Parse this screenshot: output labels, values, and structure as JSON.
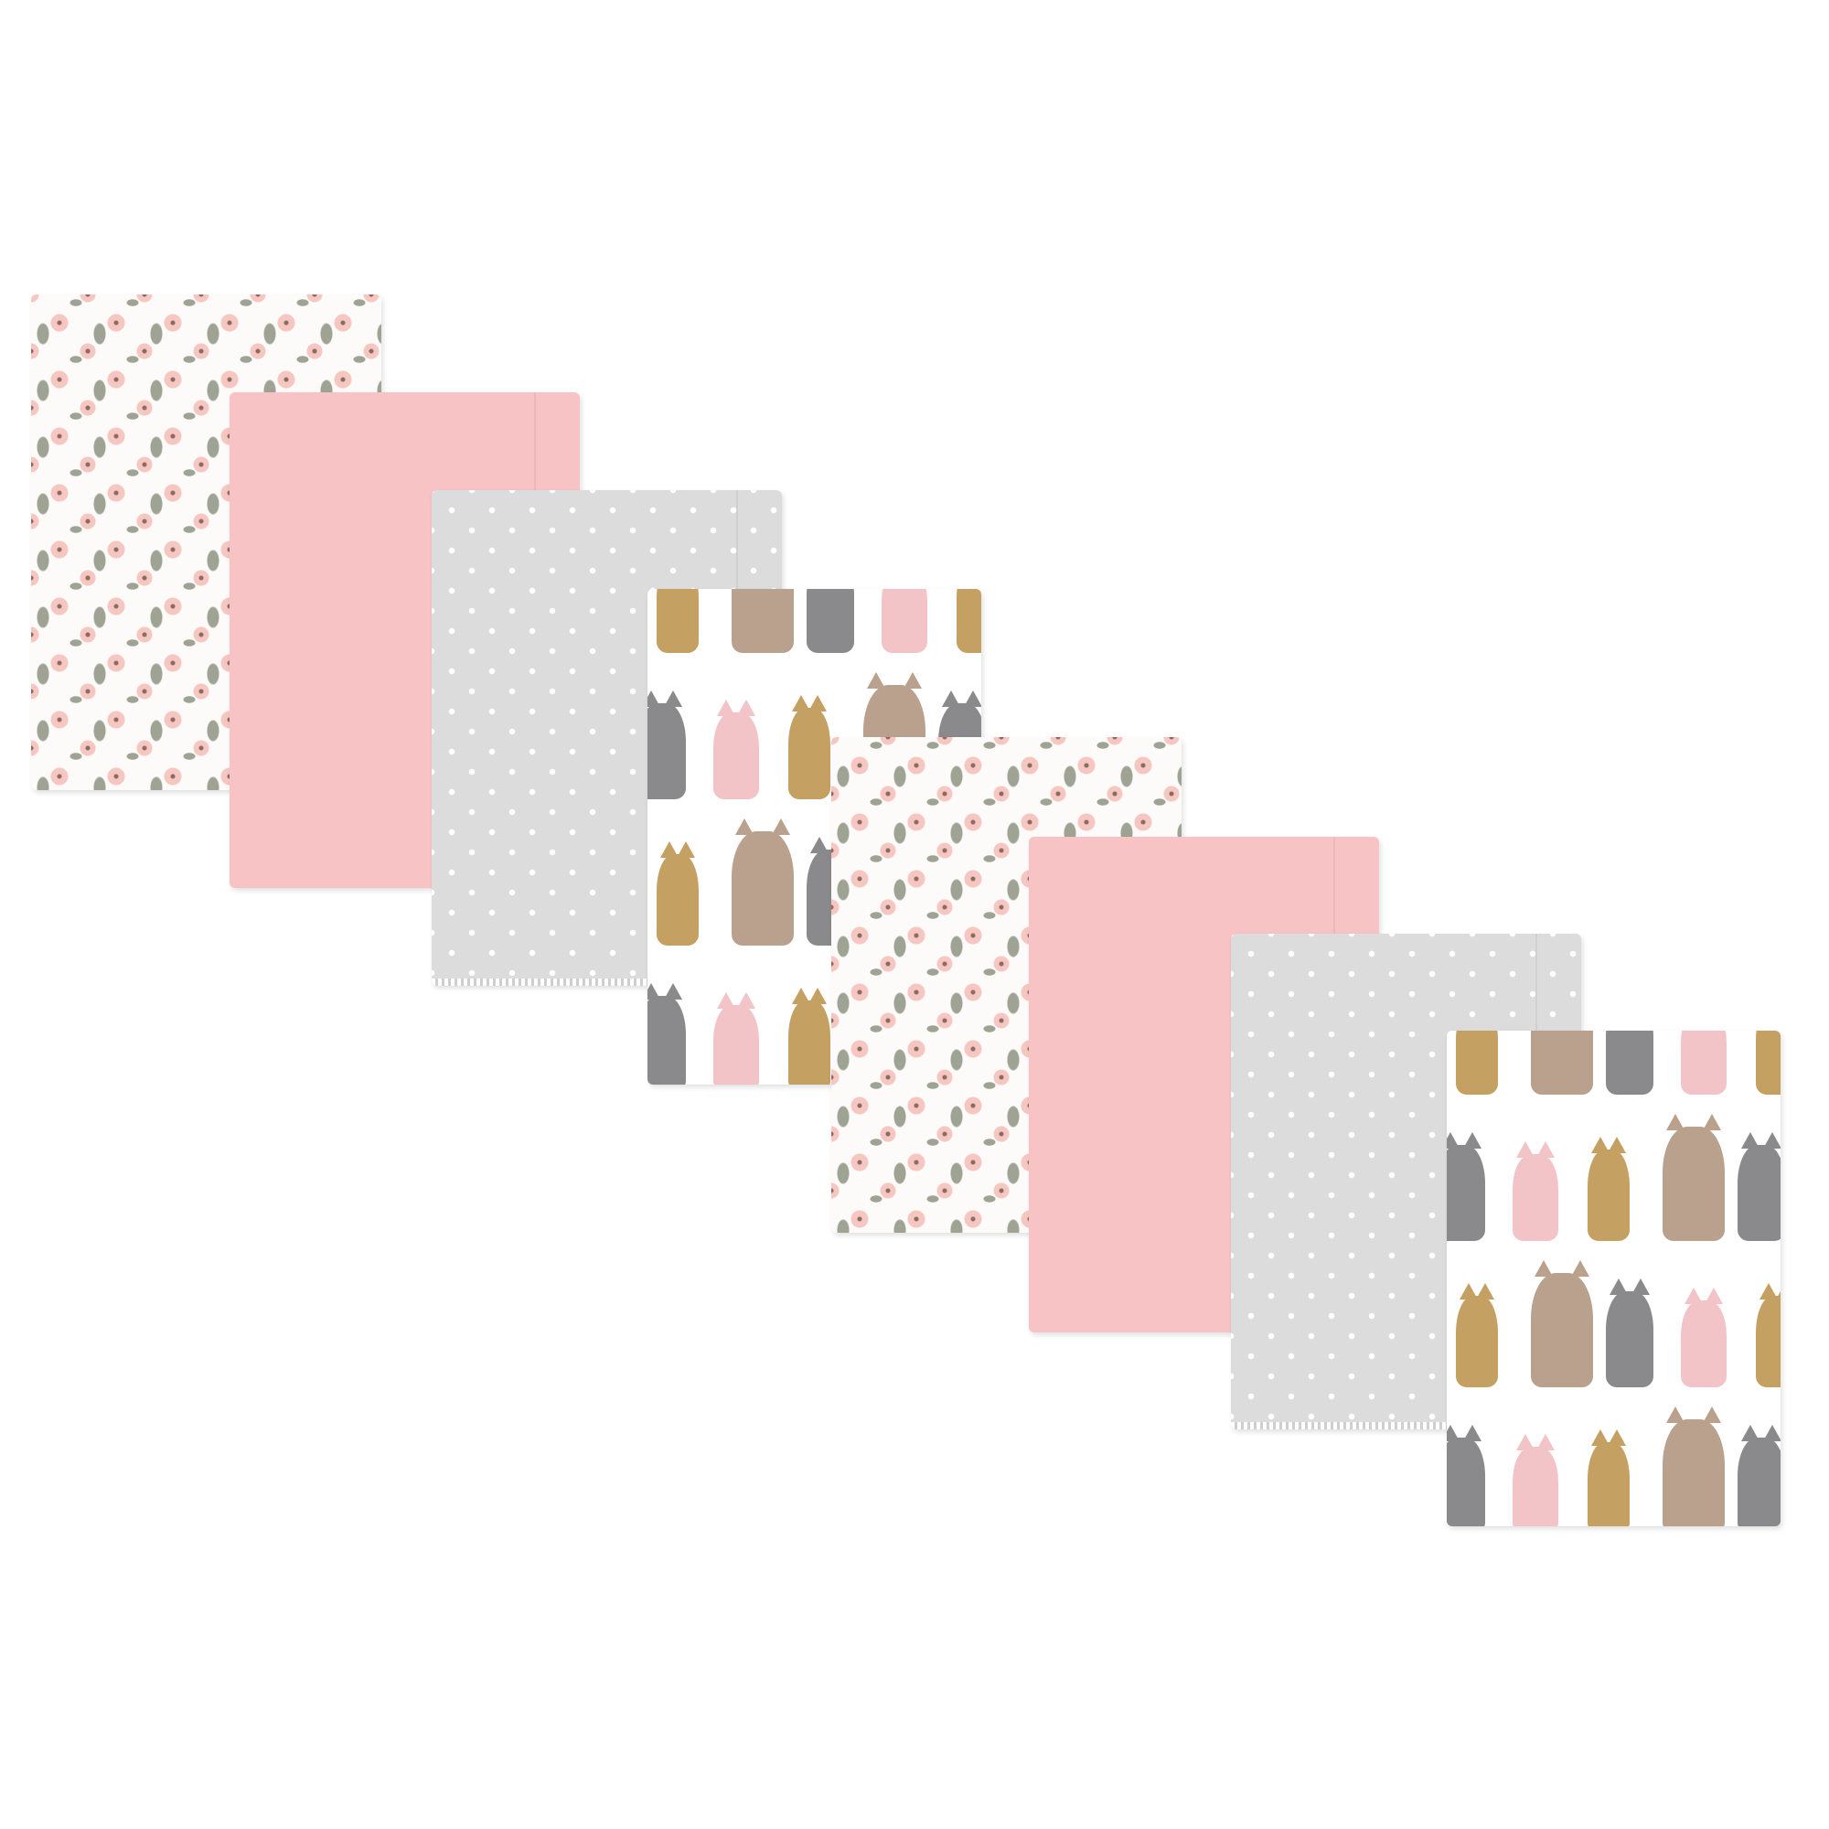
{
  "scene": {
    "subject": "burp-cloth-set",
    "cloth_count": 8,
    "cloths": [
      {
        "pattern": "floral"
      },
      {
        "pattern": "solid-pink"
      },
      {
        "pattern": "gray-dots"
      },
      {
        "pattern": "woodland-animals"
      },
      {
        "pattern": "floral"
      },
      {
        "pattern": "solid-pink"
      },
      {
        "pattern": "gray-dots"
      },
      {
        "pattern": "woodland-animals"
      }
    ],
    "colors": {
      "background": "#ffffff",
      "pink": "#f8c3c4",
      "gray": "#dcdcdc",
      "flower_pink": "#f6c6c0",
      "leaf_green": "#9ea394",
      "bear_brown": "#b9a18e",
      "wolf_gray": "#8a8a8c",
      "deer_tan": "#c4a062",
      "fox_pink": "#f2c4c8"
    }
  }
}
